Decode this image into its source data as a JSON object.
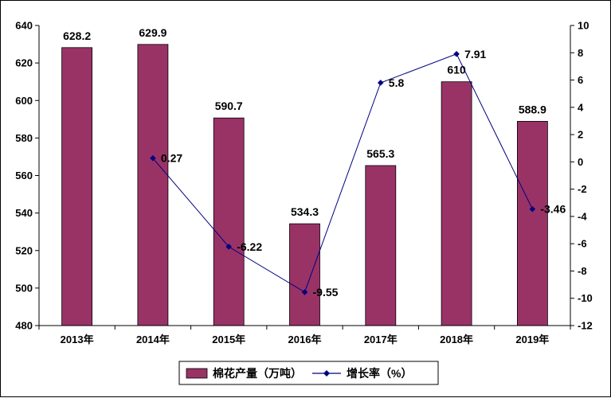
{
  "chart_data": {
    "type": "bar",
    "categories": [
      "2013年",
      "2014年",
      "2015年",
      "2016年",
      "2017年",
      "2018年",
      "2019年"
    ],
    "series": [
      {
        "name": "棉花产量（万吨）",
        "type": "bar",
        "axis": "left",
        "color": "#993366",
        "values": [
          628.2,
          629.9,
          590.7,
          534.3,
          565.3,
          610,
          588.9
        ],
        "labels": [
          "628.2",
          "629.9",
          "590.7",
          "534.3",
          "565.3",
          "610",
          "588.9"
        ]
      },
      {
        "name": "增长率（%）",
        "type": "line",
        "axis": "right",
        "color": "#000080",
        "values": [
          null,
          0.27,
          -6.22,
          -9.55,
          5.8,
          7.91,
          -3.46
        ],
        "labels": [
          "",
          "0.27",
          "-6.22",
          "-9.55",
          "5.8",
          "7.91",
          "-3.46"
        ]
      }
    ],
    "y_left": {
      "min": 480,
      "max": 640,
      "step": 20
    },
    "y_right": {
      "min": -12,
      "max": 10,
      "step": 2
    },
    "legend_position": "bottom",
    "grid": false
  }
}
